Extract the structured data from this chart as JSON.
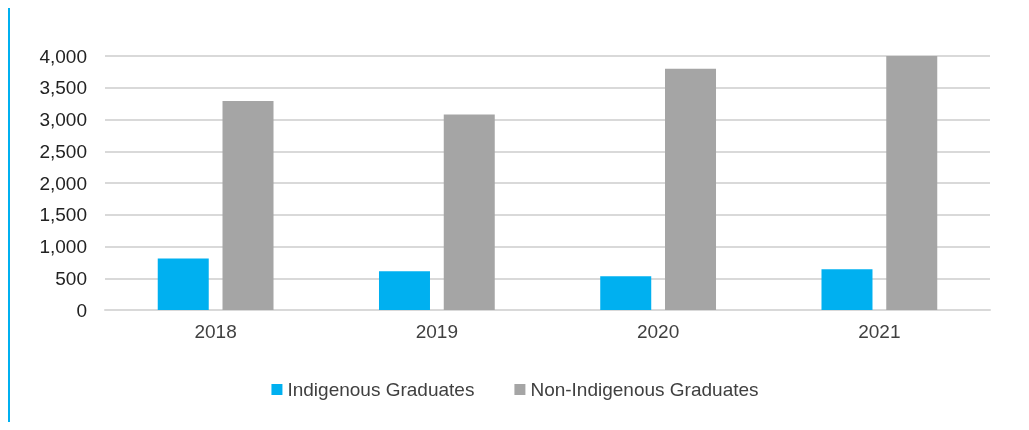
{
  "chart_data": {
    "type": "bar",
    "categories": [
      "2018",
      "2019",
      "2020",
      "2021"
    ],
    "series": [
      {
        "name": "Indigenous Graduates",
        "color": "#00b0f0",
        "values": [
          810,
          610,
          530,
          640
        ]
      },
      {
        "name": "Non-Indigenous Graduates",
        "color": "#a5a5a5",
        "values": [
          3290,
          3080,
          3800,
          4000
        ]
      }
    ],
    "ylim": [
      0,
      4000
    ],
    "yticks": [
      0,
      500,
      {
        "value": 1000,
        "label": "1,000"
      },
      {
        "value": 1500,
        "label": "1,500"
      },
      {
        "value": 2000,
        "label": "2,000"
      },
      {
        "value": 2500,
        "label": "2,500"
      },
      {
        "value": 3000,
        "label": "3,000"
      },
      {
        "value": 3500,
        "label": "3,500"
      },
      {
        "value": 4000,
        "label": "4,000"
      }
    ],
    "grid": "y",
    "legend": "bottom"
  }
}
